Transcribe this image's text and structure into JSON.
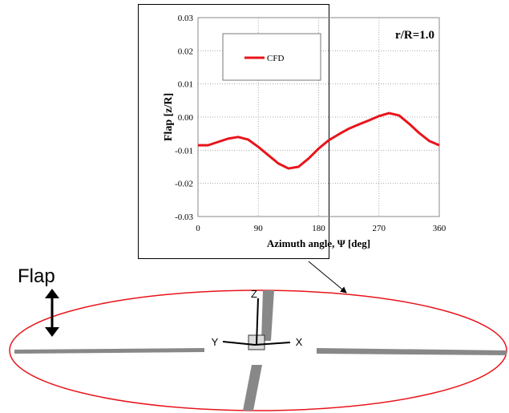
{
  "chart_data": {
    "type": "line",
    "xlabel": "Azimuth angle, Ψ [deg]",
    "ylabel": "Flap [z/R]",
    "annotation": "r/R=1.0",
    "x": [
      0,
      15,
      30,
      45,
      60,
      75,
      90,
      105,
      120,
      135,
      150,
      165,
      180,
      195,
      210,
      225,
      240,
      255,
      270,
      285,
      300,
      315,
      330,
      345,
      360
    ],
    "series": [
      {
        "name": "CFD",
        "color": "#e8141b",
        "values": [
          -0.0085,
          -0.0085,
          -0.0075,
          -0.0065,
          -0.006,
          -0.0068,
          -0.009,
          -0.0115,
          -0.014,
          -0.0155,
          -0.015,
          -0.0125,
          -0.0095,
          -0.007,
          -0.0052,
          -0.0035,
          -0.0022,
          -0.001,
          0.0003,
          0.0012,
          0.0005,
          -0.002,
          -0.0048,
          -0.0072,
          -0.0085
        ]
      }
    ],
    "xlim": [
      0,
      360
    ],
    "xticks": [
      0,
      90,
      180,
      270,
      360
    ],
    "ylim": [
      -0.03,
      0.03
    ],
    "yticks": [
      -0.03,
      -0.02,
      -0.01,
      {
        "value": 0,
        "label": "0.00"
      },
      0.01,
      0.02,
      0.03
    ],
    "grid": true,
    "legend": "upper left"
  },
  "diagram": {
    "flap_label": "Flap",
    "z_label": "Z",
    "y_label": "Y",
    "x_label": "X"
  }
}
